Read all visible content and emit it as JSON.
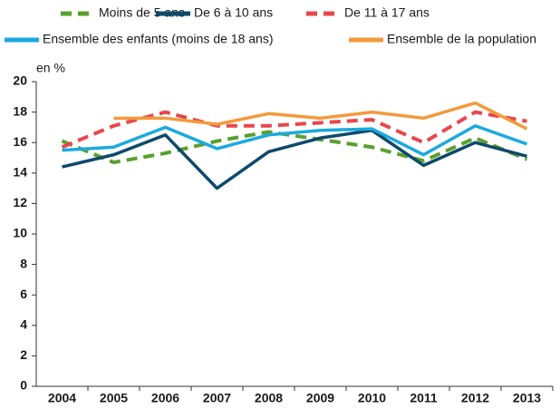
{
  "chart_data": {
    "type": "line",
    "y_label": "en %",
    "categories": [
      "2004",
      "2005",
      "2006",
      "2007",
      "2008",
      "2009",
      "2010",
      "2011",
      "2012",
      "2013"
    ],
    "series": [
      {
        "name": "Moins de 5 ans",
        "color": "#5aa02c",
        "dashed": true,
        "values": [
          16.1,
          14.7,
          15.3,
          16.1,
          16.7,
          16.2,
          15.7,
          14.8,
          16.3,
          14.9
        ]
      },
      {
        "name": "De 6 à 10 ans",
        "color": "#0d4a6b",
        "dashed": false,
        "values": [
          14.4,
          15.2,
          16.5,
          13.0,
          15.4,
          16.3,
          16.8,
          14.5,
          16.0,
          15.1
        ]
      },
      {
        "name": "De 11 à 17 ans",
        "color": "#e8474e",
        "dashed": true,
        "values": [
          15.7,
          17.1,
          18.0,
          17.1,
          17.1,
          17.3,
          17.5,
          16.0,
          18.0,
          17.4
        ]
      },
      {
        "name": "Ensemble des enfants (moins de 18 ans)",
        "color": "#1ba9df",
        "dashed": false,
        "values": [
          15.5,
          15.7,
          17.0,
          15.6,
          16.5,
          16.8,
          16.9,
          15.2,
          17.1,
          15.9
        ]
      },
      {
        "name": "Ensemble de la population",
        "color": "#f39a3c",
        "dashed": false,
        "values": [
          null,
          17.6,
          17.6,
          17.2,
          17.9,
          17.6,
          18.0,
          17.6,
          18.6,
          16.9
        ]
      }
    ],
    "ylim": [
      0,
      20
    ],
    "yticks": [
      0,
      2,
      4,
      6,
      8,
      10,
      12,
      14,
      16,
      18,
      20
    ],
    "grid": false
  }
}
